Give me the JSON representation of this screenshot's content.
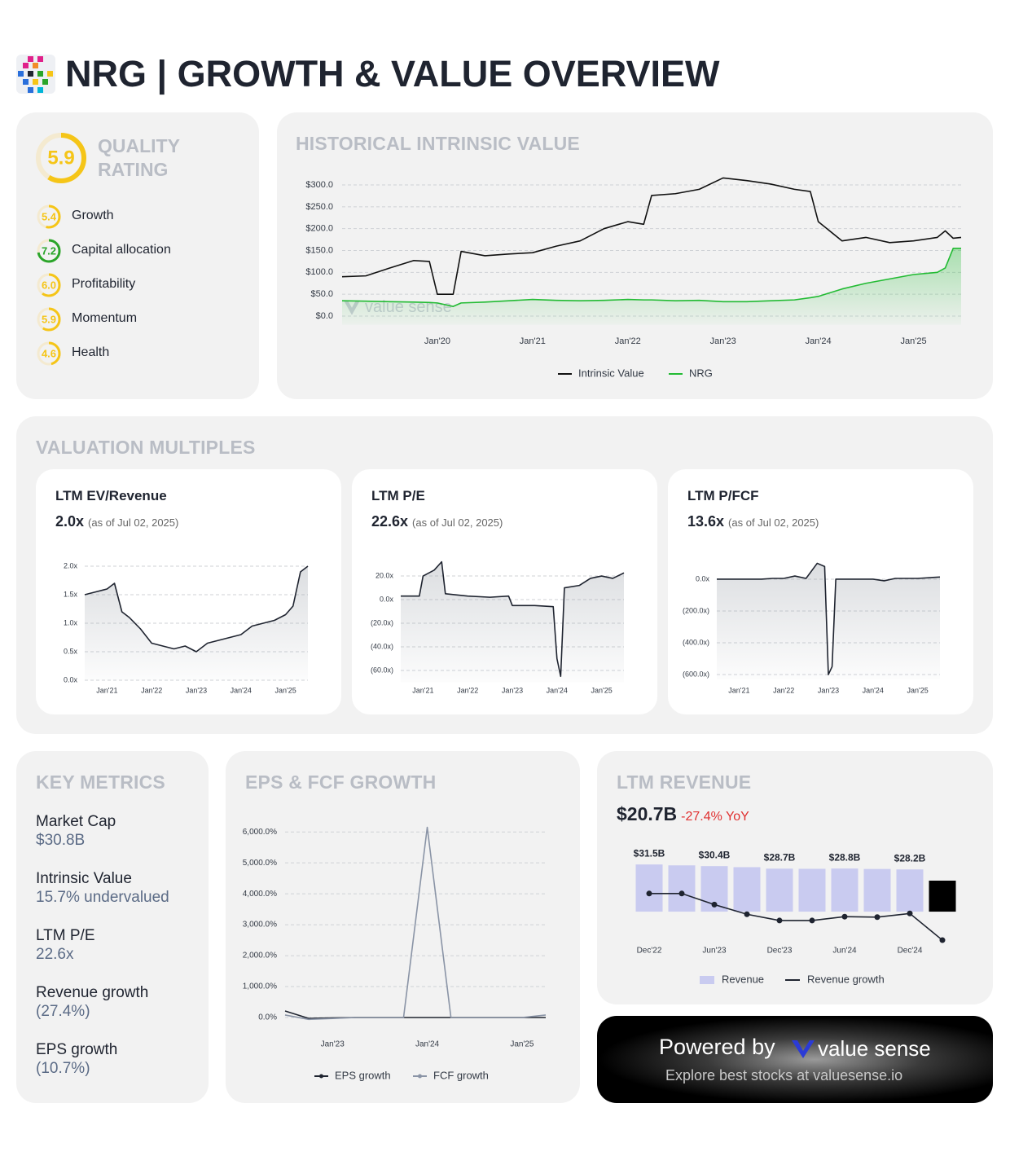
{
  "header": {
    "title": "NRG | GROWTH & VALUE OVERVIEW"
  },
  "quality": {
    "title": "QUALITY RATING",
    "score": 5.9,
    "color": "#f5c518",
    "items": [
      {
        "name": "Growth",
        "score": 5.4,
        "label": "5.4",
        "color": "#f5c518"
      },
      {
        "name": "Capital allocation",
        "score": 7.2,
        "label": "7.2",
        "color": "#2aa52a"
      },
      {
        "name": "Profitability",
        "score": 6,
        "label": "6.0",
        "color": "#f5c518"
      },
      {
        "name": "Momentum",
        "score": 5.9,
        "label": "5.9",
        "color": "#f5c518"
      },
      {
        "name": "Health",
        "score": 4.6,
        "label": "4.6",
        "color": "#f5c518"
      }
    ]
  },
  "valuation_multiples": {
    "title": "VALUATION MULTIPLES"
  },
  "key_metrics": {
    "title": "KEY METRICS",
    "items": [
      {
        "label": "Market Cap",
        "value": "$30.8B"
      },
      {
        "label": "Intrinsic Value",
        "value": "15.7% undervalued"
      },
      {
        "label": "LTM P/E",
        "value": "22.6x"
      },
      {
        "label": "Revenue growth",
        "value": "(27.4%)"
      },
      {
        "label": "EPS growth",
        "value": "(10.7%)"
      }
    ]
  },
  "footer": {
    "powered_by": "Powered by",
    "brand": "value sense",
    "tagline": "Explore best stocks at valuesense.io"
  },
  "chart_data": [
    {
      "type": "line",
      "title": "HISTORICAL INTRINSIC VALUE",
      "watermark": "value sense",
      "x": [
        "2019-01",
        "2019-04",
        "2019-07",
        "2019-10",
        "2019-12",
        "2020-01",
        "2020-03",
        "2020-04",
        "2020-07",
        "2020-10",
        "2021-01",
        "2021-04",
        "2021-07",
        "2021-10",
        "2022-01",
        "2022-03",
        "2022-04",
        "2022-07",
        "2022-10",
        "2023-01",
        "2023-04",
        "2023-07",
        "2023-10",
        "2023-12",
        "2024-01",
        "2024-04",
        "2024-07",
        "2024-10",
        "2025-01",
        "2025-04",
        "2025-05",
        "2025-06",
        "2025-07"
      ],
      "series": [
        {
          "name": "Intrinsic Value",
          "color": "#111111",
          "values": [
            90,
            92,
            110,
            127,
            125,
            50,
            50,
            148,
            138,
            142,
            145,
            160,
            172,
            200,
            216,
            210,
            276,
            280,
            290,
            316,
            310,
            302,
            290,
            285,
            216,
            172,
            180,
            168,
            172,
            180,
            195,
            178,
            180
          ]
        },
        {
          "name": "NRG",
          "color": "#22bb33",
          "area": true,
          "values": [
            35,
            34,
            33,
            32,
            31,
            30,
            22,
            30,
            32,
            35,
            38,
            36,
            35,
            36,
            38,
            37,
            37,
            35,
            36,
            33,
            33,
            35,
            37,
            42,
            45,
            62,
            75,
            85,
            95,
            100,
            110,
            155,
            155
          ]
        }
      ],
      "xlim": [
        "2019-01",
        "2025-07"
      ],
      "xticks": [
        {
          "value": "2020-01",
          "label": "Jan'20"
        },
        {
          "value": "2021-01",
          "label": "Jan'21"
        },
        {
          "value": "2022-01",
          "label": "Jan'22"
        },
        {
          "value": "2023-01",
          "label": "Jan'23"
        },
        {
          "value": "2024-01",
          "label": "Jan'24"
        },
        {
          "value": "2025-01",
          "label": "Jan'25"
        }
      ],
      "ylim": [
        -20,
        320
      ],
      "yticks": [
        {
          "value": 0,
          "label": "$0.0"
        },
        {
          "value": 50,
          "label": "$50.0"
        },
        {
          "value": 100,
          "label": "$100.0"
        },
        {
          "value": 150,
          "label": "$150.0"
        },
        {
          "value": 200,
          "label": "$200.0"
        },
        {
          "value": 250,
          "label": "$250.0"
        },
        {
          "value": 300,
          "label": "$300.0"
        }
      ],
      "grid": true,
      "legend": "bottom"
    },
    {
      "type": "line",
      "title": "LTM EV/Revenue",
      "current": "2.0x",
      "as_of": "(as of Jul 02, 2025)",
      "color": "#1f2430",
      "area": true,
      "x": [
        "2020-07",
        "2020-10",
        "2021-01",
        "2021-03",
        "2021-05",
        "2021-07",
        "2021-10",
        "2022-01",
        "2022-04",
        "2022-07",
        "2022-10",
        "2023-01",
        "2023-04",
        "2023-07",
        "2023-10",
        "2024-01",
        "2024-04",
        "2024-07",
        "2024-10",
        "2025-01",
        "2025-03",
        "2025-05",
        "2025-07"
      ],
      "values": [
        1.5,
        1.55,
        1.6,
        1.7,
        1.2,
        1.1,
        0.9,
        0.65,
        0.6,
        0.55,
        0.6,
        0.5,
        0.65,
        0.7,
        0.75,
        0.8,
        0.95,
        1.0,
        1.05,
        1.15,
        1.3,
        1.9,
        2.0
      ],
      "xlim": [
        "2020-07",
        "2025-07"
      ],
      "xticks": [
        {
          "value": "2021-01",
          "label": "Jan'21"
        },
        {
          "value": "2022-01",
          "label": "Jan'22"
        },
        {
          "value": "2023-01",
          "label": "Jan'23"
        },
        {
          "value": "2024-01",
          "label": "Jan'24"
        },
        {
          "value": "2025-01",
          "label": "Jan'25"
        }
      ],
      "ylim": [
        0,
        2.1
      ],
      "yticks": [
        {
          "value": 0,
          "label": "0.0x"
        },
        {
          "value": 0.5,
          "label": "0.5x"
        },
        {
          "value": 1,
          "label": "1.0x"
        },
        {
          "value": 1.5,
          "label": "1.5x"
        },
        {
          "value": 2,
          "label": "2.0x"
        }
      ],
      "grid": true
    },
    {
      "type": "line",
      "title": "LTM P/E",
      "current": "22.6x",
      "as_of": "(as of Jul 02, 2025)",
      "color": "#1f2430",
      "area": true,
      "x": [
        "2020-07",
        "2020-12",
        "2021-01",
        "2021-04",
        "2021-06",
        "2021-07",
        "2022-01",
        "2022-07",
        "2022-12",
        "2023-01",
        "2023-07",
        "2023-12",
        "2024-01",
        "2024-02",
        "2024-03",
        "2024-07",
        "2024-10",
        "2025-01",
        "2025-04",
        "2025-07"
      ],
      "values": [
        3,
        3,
        20,
        25,
        32,
        5,
        3,
        2,
        3,
        -5,
        -5,
        -6,
        -50,
        -65,
        10,
        12,
        18,
        20,
        18,
        22.6
      ],
      "xlim": [
        "2020-07",
        "2025-07"
      ],
      "xticks": [
        {
          "value": "2021-01",
          "label": "Jan'21"
        },
        {
          "value": "2022-01",
          "label": "Jan'22"
        },
        {
          "value": "2023-01",
          "label": "Jan'23"
        },
        {
          "value": "2024-01",
          "label": "Jan'24"
        },
        {
          "value": "2025-01",
          "label": "Jan'25"
        }
      ],
      "ylim": [
        -70,
        37
      ],
      "yticks": [
        {
          "value": 20,
          "label": "20.0x"
        },
        {
          "value": 0,
          "label": "0.0x"
        },
        {
          "value": -20,
          "label": "(20.0x)"
        },
        {
          "value": -40,
          "label": "(40.0x)"
        },
        {
          "value": -60,
          "label": "(60.0x)"
        }
      ],
      "grid": true
    },
    {
      "type": "line",
      "title": "LTM P/FCF",
      "current": "13.6x",
      "as_of": "(as of Jul 02, 2025)",
      "color": "#1f2430",
      "area": true,
      "x": [
        "2020-07",
        "2021-07",
        "2021-10",
        "2022-01",
        "2022-04",
        "2022-07",
        "2022-10",
        "2022-12",
        "2023-01",
        "2023-02",
        "2023-03",
        "2024-01",
        "2024-04",
        "2024-07",
        "2025-01",
        "2025-07"
      ],
      "values": [
        0,
        0,
        5,
        5,
        20,
        5,
        100,
        80,
        -600,
        -550,
        0,
        0,
        -10,
        5,
        5,
        13.6
      ],
      "xlim": [
        "2020-07",
        "2025-07"
      ],
      "xticks": [
        {
          "value": "2021-01",
          "label": "Jan'21"
        },
        {
          "value": "2022-01",
          "label": "Jan'22"
        },
        {
          "value": "2023-01",
          "label": "Jan'23"
        },
        {
          "value": "2024-01",
          "label": "Jan'24"
        },
        {
          "value": "2025-01",
          "label": "Jan'25"
        }
      ],
      "ylim": [
        -630,
        110
      ],
      "yticks": [
        {
          "value": 0,
          "label": "0.0x"
        },
        {
          "value": -200,
          "label": "(200.0x)"
        },
        {
          "value": -400,
          "label": "(400.0x)"
        },
        {
          "value": -600,
          "label": "(600.0x)"
        }
      ],
      "grid": true
    },
    {
      "type": "line",
      "title": "EPS & FCF GROWTH",
      "x": [
        "2022-07",
        "2022-10",
        "2023-01",
        "2023-04",
        "2023-07",
        "2023-10",
        "2024-01",
        "2024-04",
        "2024-07",
        "2024-10",
        "2025-01",
        "2025-04"
      ],
      "series": [
        {
          "name": "EPS growth",
          "color": "#1f2430",
          "values": [
            210,
            -30,
            -10,
            0,
            0,
            0,
            0,
            0,
            0,
            0,
            0,
            0
          ]
        },
        {
          "name": "FCF growth",
          "color": "#8a94a6",
          "values": [
            80,
            -60,
            -30,
            0,
            0,
            0,
            6150,
            0,
            0,
            0,
            0,
            80
          ]
        }
      ],
      "xlim": [
        "2022-07",
        "2025-04"
      ],
      "xticks": [
        {
          "value": "2023-01",
          "label": "Jan'23"
        },
        {
          "value": "2024-01",
          "label": "Jan'24"
        },
        {
          "value": "2025-01",
          "label": "Jan'25"
        }
      ],
      "ylim": [
        -150,
        6400
      ],
      "yticks": [
        {
          "value": 0,
          "label": "0.0%"
        },
        {
          "value": 1000,
          "label": "1,000.0%"
        },
        {
          "value": 2000,
          "label": "2,000.0%"
        },
        {
          "value": 3000,
          "label": "3,000.0%"
        },
        {
          "value": 4000,
          "label": "4,000.0%"
        },
        {
          "value": 5000,
          "label": "5,000.0%"
        },
        {
          "value": 6000,
          "label": "6,000.0%"
        }
      ],
      "grid": true,
      "legend": "bottom"
    },
    {
      "type": "bar",
      "title": "LTM REVENUE",
      "headline": "$20.7B",
      "change": "-27.4% YoY",
      "categories": [
        "Dec'22",
        null,
        "Jun'23",
        null,
        "Dec'23",
        null,
        "Jun'24",
        null,
        "Dec'24",
        null
      ],
      "series": [
        {
          "name": "Revenue",
          "color": "#c9cbf0",
          "colors": [
            "#c9cbf0",
            "#c9cbf0",
            "#c9cbf0",
            "#c9cbf0",
            "#c9cbf0",
            "#c9cbf0",
            "#c9cbf0",
            "#c9cbf0",
            "#c9cbf0",
            "#000000"
          ],
          "values": [
            31.5,
            30.9,
            30.4,
            29.7,
            28.7,
            28.6,
            28.8,
            28.5,
            28.2,
            20.7
          ],
          "value_labels": [
            "$31.5B",
            null,
            "$30.4B",
            null,
            "$28.7B",
            null,
            "$28.8B",
            null,
            "$28.2B",
            null
          ]
        },
        {
          "name": "Revenue growth",
          "color": "#1f2430",
          "axis": "y2",
          "values": [
            21,
            21,
            9.5,
            -0.5,
            -7,
            -7,
            -3,
            -3.5,
            0.3,
            -27.4
          ]
        }
      ],
      "ylim": [
        -22,
        43
      ],
      "y2lim": [
        -32,
        69
      ],
      "legend": "bottom"
    }
  ]
}
